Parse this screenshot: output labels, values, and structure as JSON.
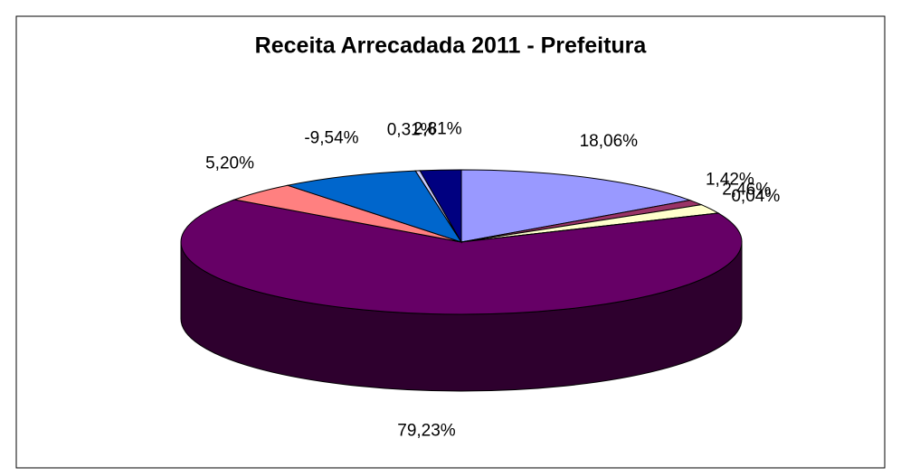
{
  "chart_data": {
    "type": "pie",
    "title": "Receita Arrecadada 2011 - Prefeitura",
    "values": [
      18.06,
      1.42,
      2.46,
      0.04,
      79.23,
      5.2,
      -9.54,
      0.31,
      2.81
    ],
    "value_labels": [
      "18,06%",
      "1,42%",
      "2,46%",
      "0,04%",
      "79,23%",
      "5,20%",
      "-9,54%",
      "0,31%",
      "2,81%"
    ],
    "colors": [
      "#9999ff",
      "#993366",
      "#ffffcc",
      "#ccffff",
      "#660066",
      "#ff8080",
      "#0066cc",
      "#ccccff",
      "#000080"
    ]
  }
}
